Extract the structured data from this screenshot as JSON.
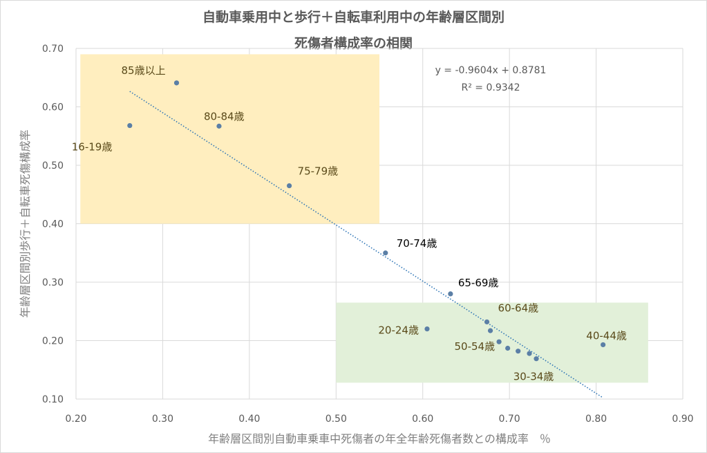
{
  "title_lines": [
    "自動車乗用中と歩行＋自転車利用中の年齢層区間別",
    "死傷者構成率の相関"
  ],
  "colors": {
    "point": "#5b7fa6",
    "trendline": "#2e75b6",
    "grid": "#d9d9d9",
    "highlight_upper": "#ffeebf",
    "highlight_lower": "#e2f0d9",
    "label_dark": "#5a4a1a",
    "label_black": "#000000"
  },
  "chart_data": {
    "type": "scatter",
    "title": "自動車乗用中と歩行＋自転車利用中の年齢層区間別 死傷者構成率の相関",
    "xlabel": "年齢層区間別自動車乗車中死傷者の年全年齢死傷者数との構成率　％",
    "ylabel": "年齢層区間別歩行＋自転車死傷構成率",
    "xlim": [
      0.2,
      0.9
    ],
    "ylim": [
      0.1,
      0.7
    ],
    "x_ticks": [
      "0.20",
      "0.30",
      "0.40",
      "0.50",
      "0.60",
      "0.70",
      "0.80",
      "0.90"
    ],
    "y_ticks": [
      "0.10",
      "0.20",
      "0.30",
      "0.40",
      "0.50",
      "0.60",
      "0.70"
    ],
    "grid": true,
    "legend": "none",
    "points": [
      {
        "label": "16-19歳",
        "x": 0.262,
        "y": 0.568
      },
      {
        "label": "85歳以上",
        "x": 0.316,
        "y": 0.641
      },
      {
        "label": "80-84歳",
        "x": 0.365,
        "y": 0.567
      },
      {
        "label": "75-79歳",
        "x": 0.446,
        "y": 0.465
      },
      {
        "label": "70-74歳",
        "x": 0.557,
        "y": 0.35
      },
      {
        "label": "65-69歳",
        "x": 0.632,
        "y": 0.28
      },
      {
        "label": "60-64歳",
        "x": 0.674,
        "y": 0.232
      },
      {
        "label": "",
        "x": 0.678,
        "y": 0.217
      },
      {
        "label": "20-24歳",
        "x": 0.605,
        "y": 0.22
      },
      {
        "label": "50-54歳",
        "x": 0.688,
        "y": 0.198
      },
      {
        "label": "",
        "x": 0.698,
        "y": 0.187
      },
      {
        "label": "",
        "x": 0.71,
        "y": 0.182
      },
      {
        "label": "",
        "x": 0.723,
        "y": 0.178
      },
      {
        "label": "30-34歳",
        "x": 0.731,
        "y": 0.169
      },
      {
        "label": "40-44歳",
        "x": 0.808,
        "y": 0.193
      }
    ],
    "trendline": {
      "type": "linear",
      "slope": -0.9604,
      "intercept": 0.8781,
      "x_range": [
        0.262,
        0.808
      ],
      "equation_text": "y = -0.9604x + 0.8781",
      "r2_text": "R² = 0.9342"
    },
    "highlight_regions": [
      {
        "name": "upper-left",
        "x": [
          0.205,
          0.55
        ],
        "y": [
          0.4,
          0.69
        ]
      },
      {
        "name": "lower-right",
        "x": [
          0.5,
          0.86
        ],
        "y": [
          0.128,
          0.265
        ]
      }
    ]
  }
}
